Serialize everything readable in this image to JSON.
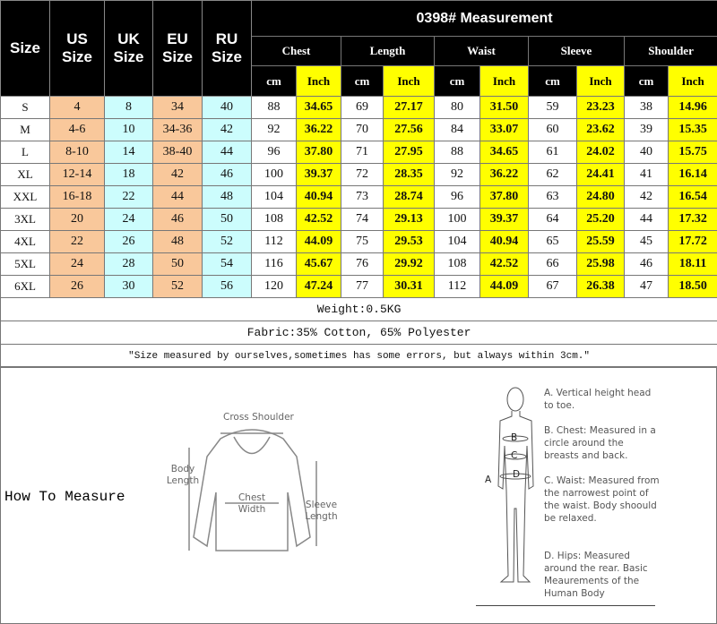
{
  "title": "0398# Measurement",
  "headers": {
    "size": "Size",
    "us": "US Size",
    "uk": "UK Size",
    "eu": "EU Size",
    "ru": "RU Size"
  },
  "categories": [
    "Chest",
    "Length",
    "Waist",
    "Sleeve",
    "Shoulder"
  ],
  "units": {
    "cm": "cm",
    "inch": "Inch"
  },
  "rows": [
    [
      "S",
      "4",
      "8",
      "34",
      "40",
      "88",
      "34.65",
      "69",
      "27.17",
      "80",
      "31.50",
      "59",
      "23.23",
      "38",
      "14.96"
    ],
    [
      "M",
      "4-6",
      "10",
      "34-36",
      "42",
      "92",
      "36.22",
      "70",
      "27.56",
      "84",
      "33.07",
      "60",
      "23.62",
      "39",
      "15.35"
    ],
    [
      "L",
      "8-10",
      "14",
      "38-40",
      "44",
      "96",
      "37.80",
      "71",
      "27.95",
      "88",
      "34.65",
      "61",
      "24.02",
      "40",
      "15.75"
    ],
    [
      "XL",
      "12-14",
      "18",
      "42",
      "46",
      "100",
      "39.37",
      "72",
      "28.35",
      "92",
      "36.22",
      "62",
      "24.41",
      "41",
      "16.14"
    ],
    [
      "XXL",
      "16-18",
      "22",
      "44",
      "48",
      "104",
      "40.94",
      "73",
      "28.74",
      "96",
      "37.80",
      "63",
      "24.80",
      "42",
      "16.54"
    ],
    [
      "3XL",
      "20",
      "24",
      "46",
      "50",
      "108",
      "42.52",
      "74",
      "29.13",
      "100",
      "39.37",
      "64",
      "25.20",
      "44",
      "17.32"
    ],
    [
      "4XL",
      "22",
      "26",
      "48",
      "52",
      "112",
      "44.09",
      "75",
      "29.53",
      "104",
      "40.94",
      "65",
      "25.59",
      "45",
      "17.72"
    ],
    [
      "5XL",
      "24",
      "28",
      "50",
      "54",
      "116",
      "45.67",
      "76",
      "29.92",
      "108",
      "42.52",
      "66",
      "25.98",
      "46",
      "18.11"
    ],
    [
      "6XL",
      "26",
      "30",
      "52",
      "56",
      "120",
      "47.24",
      "77",
      "30.31",
      "112",
      "44.09",
      "67",
      "26.38",
      "47",
      "18.50"
    ]
  ],
  "weight": "Weight:0.5KG",
  "fabric": "Fabric:35% Cotton, 65% Polyester",
  "note": "\"Size measured by ourselves,sometimes has some errors, but always within 3cm.\"",
  "how_to_measure": "How To Measure",
  "garment_labels": {
    "cross_shoulder": "Cross Shoulder",
    "body_length": "Body Length",
    "chest_width": "Chest Width",
    "sleeve_length": "Sleeve Length"
  },
  "body_labels": [
    "A",
    "B",
    "C",
    "D"
  ],
  "body_descriptions": [
    "A. Vertical height head to toe.",
    "B. Chest: Measured in a circle around the breasts and back.",
    "C. Waist: Measured from the narrowest point of the waist. Body shoould be relaxed.",
    "D. Hips: Measured around the rear. Basic Meaurements of the Human Body"
  ],
  "colors": {
    "header": "#000000",
    "inch": "#ffff00",
    "us_eu": "#f9c89b",
    "uk_ru": "#ccfdfd"
  }
}
